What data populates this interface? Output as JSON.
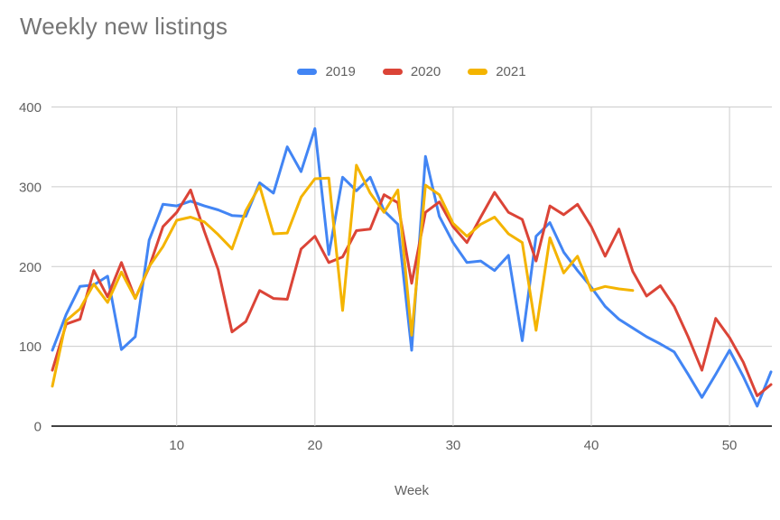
{
  "title": "Weekly new listings",
  "legend": [
    {
      "label": "2019",
      "color": "#4285F4"
    },
    {
      "label": "2020",
      "color": "#DB4437"
    },
    {
      "label": "2021",
      "color": "#F4B400"
    }
  ],
  "colors": {
    "series_2019": "#4285F4",
    "series_2020": "#DB4437",
    "series_2021": "#F4B400",
    "gridline": "#cccccc",
    "axis_line": "#424242",
    "tick_text": "#616161",
    "title_text": "#757575"
  },
  "chart_data": {
    "type": "line",
    "title": "Weekly new listings",
    "xlabel": "Week",
    "ylabel": "",
    "xlim": [
      1,
      53
    ],
    "ylim": [
      0,
      400
    ],
    "x_ticks": [
      10,
      20,
      30,
      40,
      50
    ],
    "y_ticks": [
      0,
      100,
      200,
      300,
      400
    ],
    "grid": true,
    "legend_position": "top",
    "x_unit": "week number, first data point is week 1",
    "series": [
      {
        "name": "2019",
        "color": "#4285F4",
        "values": [
          95,
          140,
          175,
          177,
          188,
          96,
          112,
          233,
          278,
          276,
          282,
          276,
          271,
          264,
          263,
          305,
          292,
          350,
          319,
          373,
          215,
          312,
          295,
          312,
          270,
          253,
          95,
          338,
          263,
          230,
          205,
          207,
          195,
          214,
          107,
          238,
          255,
          218,
          195,
          174,
          150,
          134,
          123,
          112,
          103,
          93,
          65,
          36,
          65,
          95,
          62,
          25,
          68
        ]
      },
      {
        "name": "2020",
        "color": "#DB4437",
        "values": [
          70,
          128,
          134,
          195,
          162,
          205,
          160,
          199,
          250,
          268,
          296,
          244,
          196,
          118,
          131,
          170,
          160,
          159,
          222,
          238,
          205,
          212,
          245,
          247,
          290,
          280,
          179,
          268,
          281,
          250,
          230,
          262,
          293,
          268,
          259,
          207,
          276,
          265,
          278,
          250,
          213,
          247,
          194,
          163,
          176,
          150,
          112,
          70,
          135,
          111,
          80,
          38,
          52
        ]
      },
      {
        "name": "2021",
        "color": "#F4B400",
        "values": [
          50,
          132,
          147,
          178,
          155,
          193,
          160,
          200,
          225,
          258,
          262,
          256,
          240,
          222,
          270,
          301,
          241,
          242,
          287,
          310,
          311,
          145,
          327,
          292,
          268,
          296,
          114,
          302,
          290,
          254,
          238,
          253,
          262,
          241,
          230,
          120,
          236,
          192,
          213,
          170,
          175,
          172,
          170
        ]
      }
    ]
  }
}
